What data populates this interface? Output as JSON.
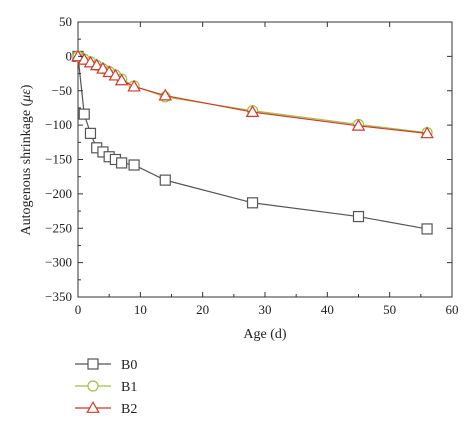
{
  "chart_data": {
    "type": "line",
    "xlabel": "Age (d)",
    "ylabel_prefix": "Autogenous shrinkage (",
    "ylabel_symbol": "με",
    "ylabel_suffix": ")",
    "xlim": [
      0,
      60
    ],
    "ylim": [
      -350,
      50
    ],
    "xticks": [
      0,
      10,
      20,
      30,
      40,
      50,
      60
    ],
    "yticks": [
      50,
      0,
      -50,
      -100,
      -150,
      -200,
      -250,
      -300,
      -350
    ],
    "legend_position": "bottom-left",
    "series": [
      {
        "name": "B0",
        "marker": "square",
        "color": "#555555",
        "x": [
          0,
          1,
          2,
          3,
          4,
          5,
          6,
          7,
          9,
          14,
          28,
          45,
          56
        ],
        "y": [
          0,
          -84,
          -112,
          -133,
          -139,
          -146,
          -150,
          -155,
          -158,
          -180,
          -213,
          -233,
          -251
        ]
      },
      {
        "name": "B1",
        "marker": "circle",
        "color": "#9dc146",
        "x": [
          0,
          1,
          2,
          3,
          4,
          5,
          6,
          7,
          9,
          14,
          28,
          45,
          56
        ],
        "y": [
          0,
          -4,
          -8,
          -13,
          -18,
          -22,
          -27,
          -33,
          -43,
          -59,
          -79,
          -99,
          -111
        ]
      },
      {
        "name": "B2",
        "marker": "triangle",
        "color": "#d0392b",
        "x": [
          0,
          1,
          2,
          3,
          4,
          5,
          6,
          7,
          9,
          14,
          28,
          45,
          56
        ],
        "y": [
          0,
          -5,
          -9,
          -13,
          -18,
          -23,
          -28,
          -35,
          -44,
          -57,
          -81,
          -101,
          -112
        ]
      }
    ]
  }
}
